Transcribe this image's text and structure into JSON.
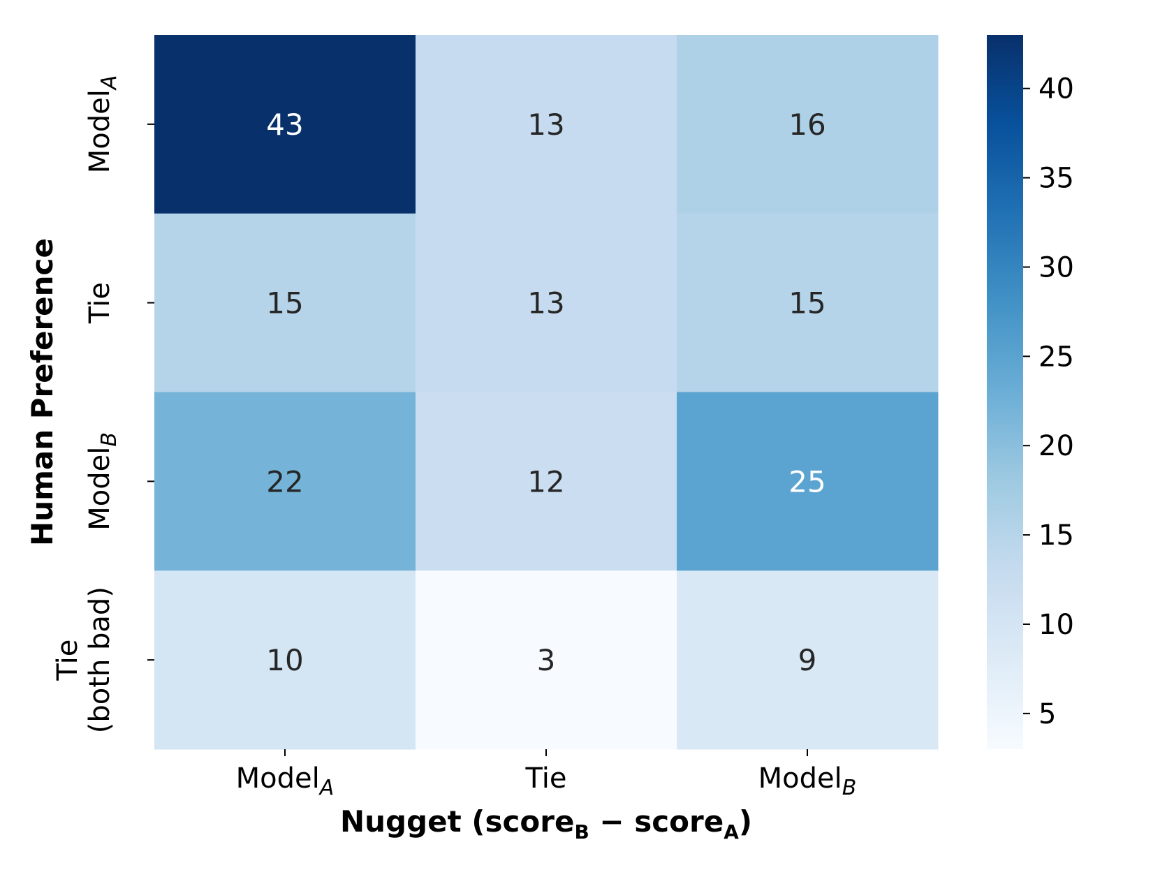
{
  "chart_data": {
    "type": "heatmap",
    "xlabel": {
      "base": "Nugget (score",
      "sub1": "B",
      "mid": " − score",
      "sub2": "A",
      "end": ")"
    },
    "ylabel": "Human Preference",
    "x_categories": [
      {
        "base": "Model",
        "sub": "A"
      },
      {
        "base": "Tie",
        "sub": ""
      },
      {
        "base": "Model",
        "sub": "B"
      }
    ],
    "y_categories": [
      {
        "lines": [
          "Model"
        ],
        "sub": "A"
      },
      {
        "lines": [
          "Tie"
        ],
        "sub": ""
      },
      {
        "lines": [
          "Model"
        ],
        "sub": "B"
      },
      {
        "lines": [
          "Tie",
          "(both bad)"
        ],
        "sub": ""
      }
    ],
    "values": [
      [
        43,
        13,
        16
      ],
      [
        15,
        13,
        15
      ],
      [
        22,
        12,
        25
      ],
      [
        10,
        3,
        9
      ]
    ],
    "colormap": "Blues",
    "vmin": 3,
    "vmax": 43,
    "colorbar_ticks": [
      5,
      10,
      15,
      20,
      25,
      30,
      35,
      40
    ],
    "colors": {
      "scale": [
        "#f7fbff",
        "#deebf7",
        "#c6dbef",
        "#9ecae1",
        "#6baed6",
        "#4292c6",
        "#2171b5",
        "#08519c",
        "#08306b"
      ],
      "text_dark": "#262626",
      "text_light": "#ffffff"
    }
  }
}
